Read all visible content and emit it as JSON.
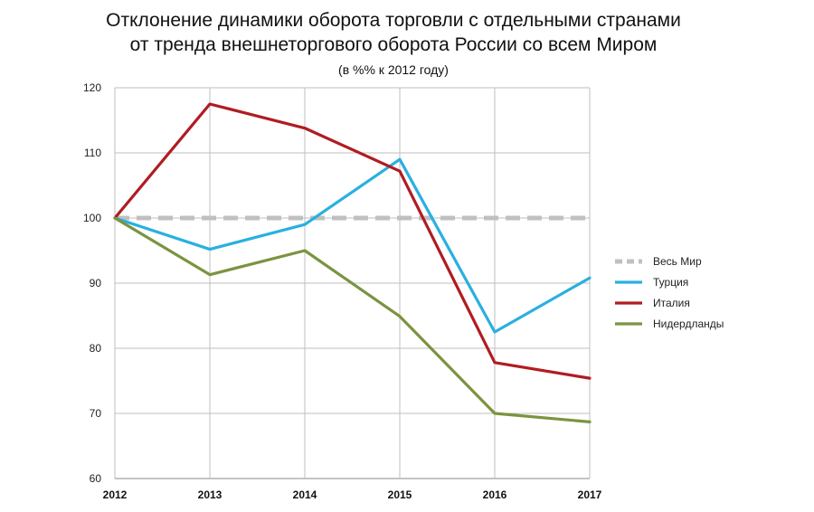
{
  "chart_data": {
    "type": "line",
    "title_line1": "Отклонение динамики оборота торговли с отдельными странами",
    "title_line2": "от тренда внешнеторгового оборота России со всем Миром",
    "subtitle": "(в %% к 2012 году)",
    "categories": [
      "2012",
      "2013",
      "2014",
      "2015",
      "2016",
      "2017"
    ],
    "ylim": [
      60,
      120
    ],
    "yticks": [
      60,
      70,
      80,
      90,
      100,
      110,
      120
    ],
    "grid": true,
    "legend_position": "right",
    "series": [
      {
        "name": "Весь Мир",
        "color": "#c0c0c0",
        "dashed": true,
        "values": [
          100,
          100,
          100,
          100,
          100,
          100
        ]
      },
      {
        "name": "Турция",
        "color": "#29b0e0",
        "dashed": false,
        "values": [
          100,
          95.2,
          99,
          109,
          82.5,
          90.8
        ]
      },
      {
        "name": "Италия",
        "color": "#b01c22",
        "dashed": false,
        "values": [
          100,
          117.5,
          113.8,
          107.2,
          77.8,
          75.4
        ]
      },
      {
        "name": "Нидердланды",
        "color": "#7a9440",
        "dashed": false,
        "values": [
          100,
          91.3,
          95,
          84.9,
          70,
          68.7
        ]
      }
    ]
  }
}
